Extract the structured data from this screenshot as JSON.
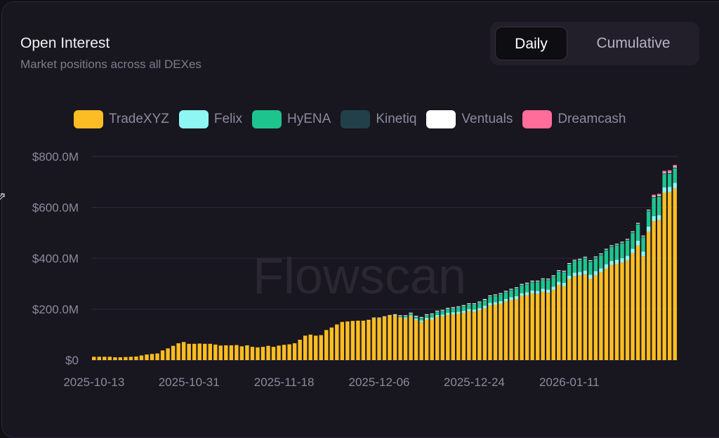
{
  "header": {
    "title": "Open Interest",
    "subtitle": "Market positions across all DEXes"
  },
  "toggle": {
    "daily_label": "Daily",
    "cumulative_label": "Cumulative",
    "selected": "Daily"
  },
  "watermark": "Flowscan",
  "legend": [
    {
      "name": "TradeXYZ",
      "color": "#fbbd23"
    },
    {
      "name": "Felix",
      "color": "#8ef7f3"
    },
    {
      "name": "HyENA",
      "color": "#1ec48e"
    },
    {
      "name": "Kinetiq",
      "color": "#22404a"
    },
    {
      "name": "Ventuals",
      "color": "#ffffff"
    },
    {
      "name": "Dreamcash",
      "color": "#ff6d9a"
    }
  ],
  "chart_data": {
    "type": "bar",
    "stacked": true,
    "x_labels": [
      "2025-10-13",
      "2025-10-31",
      "2025-11-18",
      "2025-12-06",
      "2025-12-24",
      "2026-01-11"
    ],
    "y_ticks": [
      "$0",
      "$200.0M",
      "$400.0M",
      "$600.0M",
      "$800.0M"
    ],
    "ylim": [
      0,
      800
    ],
    "y_unit": "$M",
    "grid": "horizontal",
    "start_date": "2025-10-13",
    "series": [
      {
        "name": "TradeXYZ",
        "color": "#fbbd23",
        "values": [
          13,
          13,
          13,
          13,
          11,
          11,
          12,
          13,
          14,
          18,
          22,
          24,
          26,
          38,
          46,
          56,
          66,
          71,
          64,
          64,
          65,
          64,
          64,
          61,
          57,
          58,
          58,
          59,
          54,
          58,
          52,
          50,
          52,
          56,
          52,
          57,
          60,
          62,
          66,
          80,
          96,
          100,
          96,
          98,
          118,
          128,
          140,
          150,
          152,
          154,
          155,
          155,
          156,
          165,
          165,
          170,
          175,
          177,
          168,
          164,
          172,
          158,
          150,
          160,
          160,
          170,
          172,
          178,
          180,
          182,
          186,
          192,
          190,
          196,
          204,
          215,
          218,
          222,
          230,
          236,
          240,
          252,
          255,
          262,
          260,
          268,
          264,
          276,
          295,
          290,
          318,
          330,
          332,
          337,
          320,
          334,
          345,
          360,
          373,
          378,
          383,
          392,
          420,
          450,
          408,
          505,
          546,
          550,
          658,
          660,
          675
        ]
      },
      {
        "name": "Felix",
        "color": "#8ef7f3",
        "values": [
          0,
          0,
          0,
          0,
          0,
          0,
          0,
          0,
          0,
          0,
          0,
          0,
          0,
          0,
          0,
          0,
          0,
          0,
          0,
          0,
          0,
          0,
          0,
          0,
          0,
          0,
          0,
          0,
          0,
          0,
          0,
          0,
          0,
          0,
          0,
          0,
          0,
          0,
          0,
          0,
          0,
          0,
          0,
          0,
          0,
          0,
          0,
          0,
          0,
          0,
          0,
          0,
          0,
          0,
          0,
          0,
          0,
          0,
          1,
          3,
          4,
          5,
          6,
          6,
          7,
          7,
          7,
          8,
          8,
          8,
          8,
          8,
          9,
          9,
          10,
          10,
          10,
          10,
          10,
          11,
          11,
          11,
          12,
          12,
          12,
          12,
          13,
          13,
          13,
          14,
          14,
          14,
          15,
          15,
          16,
          16,
          16,
          17,
          17,
          17,
          18,
          18,
          18,
          19,
          19,
          20,
          20,
          20,
          21,
          21,
          22
        ]
      },
      {
        "name": "HyENA",
        "color": "#1ec48e",
        "values": [
          0,
          0,
          0,
          0,
          0,
          0,
          0,
          0,
          0,
          0,
          0,
          0,
          0,
          0,
          0,
          0,
          0,
          0,
          0,
          0,
          0,
          0,
          0,
          0,
          0,
          0,
          0,
          0,
          0,
          0,
          0,
          0,
          0,
          0,
          0,
          0,
          0,
          0,
          0,
          0,
          0,
          0,
          0,
          0,
          0,
          0,
          0,
          0,
          0,
          0,
          0,
          0,
          0,
          0,
          0,
          0,
          0,
          0,
          3,
          5,
          6,
          7,
          9,
          10,
          12,
          13,
          14,
          15,
          16,
          17,
          18,
          19,
          20,
          21,
          22,
          24,
          25,
          26,
          27,
          28,
          30,
          31,
          32,
          33,
          35,
          36,
          38,
          39,
          40,
          42,
          44,
          45,
          46,
          48,
          50,
          51,
          52,
          54,
          55,
          56,
          58,
          60,
          62,
          64,
          56,
          60,
          72,
          72,
          52,
          52,
          57
        ]
      },
      {
        "name": "Kinetiq",
        "color": "#22404a",
        "values": [
          0,
          0,
          0,
          0,
          0,
          0,
          0,
          0,
          0,
          0,
          0,
          0,
          0,
          0,
          0,
          0,
          0,
          0,
          0,
          0,
          0,
          0,
          0,
          0,
          0,
          0,
          0,
          0,
          0,
          0,
          0,
          0,
          0,
          0,
          0,
          0,
          0,
          0,
          0,
          0,
          0,
          0,
          0,
          0,
          0,
          0,
          0,
          0,
          0,
          0,
          0,
          0,
          0,
          0,
          0,
          0,
          0,
          0,
          1,
          1,
          1,
          1,
          1,
          1,
          1,
          1,
          1,
          1,
          1,
          1,
          1,
          1,
          1,
          1,
          1,
          2,
          2,
          2,
          2,
          2,
          2,
          2,
          2,
          2,
          2,
          2,
          2,
          2,
          2,
          2,
          2,
          2,
          2,
          3,
          3,
          3,
          3,
          3,
          3,
          3,
          3,
          3,
          3,
          3,
          3,
          3,
          3,
          3,
          3,
          3,
          3
        ]
      },
      {
        "name": "Ventuals",
        "color": "#ffffff",
        "values": [
          0,
          0,
          0,
          0,
          0,
          0,
          0,
          0,
          0,
          0,
          0,
          0,
          0,
          0,
          0,
          0,
          0,
          0,
          0,
          0,
          0,
          0,
          0,
          0,
          0,
          0,
          0,
          0,
          0,
          0,
          0,
          0,
          0,
          0,
          0,
          0,
          0,
          0,
          0,
          0,
          0,
          0,
          0,
          0,
          0,
          0,
          0,
          0,
          0,
          0,
          0,
          0,
          2,
          2,
          2,
          2,
          2,
          3,
          3,
          3,
          3,
          3,
          3,
          3,
          3,
          3,
          3,
          3,
          3,
          3,
          3,
          3,
          3,
          3,
          3,
          3,
          3,
          3,
          3,
          3,
          3,
          3,
          3,
          3,
          3,
          3,
          3,
          3,
          3,
          3,
          3,
          3,
          3,
          3,
          3,
          3,
          3,
          3,
          3,
          3,
          3,
          3,
          3,
          3,
          3,
          3,
          3,
          3,
          3,
          3,
          3
        ]
      },
      {
        "name": "Dreamcash",
        "color": "#ff6d9a",
        "values": [
          0,
          0,
          0,
          0,
          0,
          0,
          0,
          0,
          0,
          0,
          0,
          0,
          0,
          0,
          0,
          0,
          0,
          0,
          0,
          0,
          0,
          0,
          0,
          0,
          0,
          0,
          0,
          0,
          0,
          0,
          0,
          0,
          0,
          0,
          0,
          0,
          0,
          0,
          0,
          0,
          0,
          0,
          0,
          0,
          0,
          0,
          0,
          0,
          0,
          0,
          0,
          0,
          0,
          0,
          0,
          0,
          0,
          0,
          0,
          0,
          0,
          0,
          0,
          0,
          0,
          0,
          0,
          0,
          0,
          0,
          0,
          0,
          0,
          0,
          0,
          0,
          0,
          0,
          0,
          0,
          0,
          0,
          0,
          0,
          0,
          0,
          0,
          0,
          0,
          0,
          0,
          0,
          0,
          0,
          0,
          0,
          0,
          0,
          0,
          0,
          0,
          0,
          0,
          0,
          0,
          0,
          6,
          6,
          7,
          7,
          7
        ]
      }
    ]
  }
}
